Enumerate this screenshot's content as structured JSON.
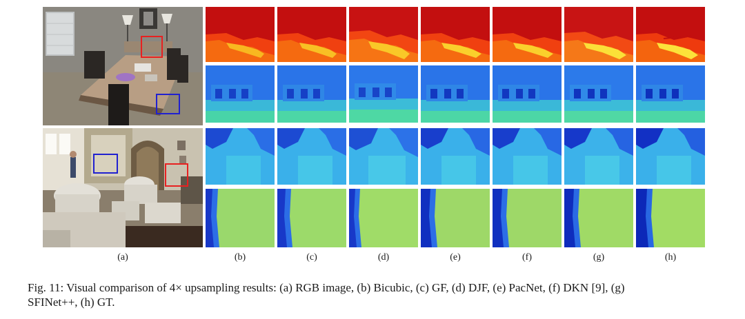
{
  "figure": {
    "sublabels": [
      "(a)",
      "(b)",
      "(c)",
      "(d)",
      "(e)",
      "(f)",
      "(g)",
      "(h)"
    ],
    "methods": [
      "Bicubic",
      "GF",
      "DJF",
      "PacNet",
      "DKN [9]",
      "SFINet++",
      "GT"
    ],
    "caption_line1": "Fig. 11: Visual comparison of 4× upsampling results: (a) RGB image, (b) Bicubic, (c) GF, (d) DJF, (e) PacNet, (f) DKN [9], (g)",
    "caption_line2": "SFINet++, (h) GT.",
    "rows": [
      {
        "scene": "dining-room",
        "colormap": "hot"
      },
      {
        "scene": "dining-room",
        "colormap": "jet-chairs"
      },
      {
        "scene": "living-room",
        "colormap": "jet-blue"
      },
      {
        "scene": "living-room",
        "colormap": "jet-green"
      }
    ],
    "colors": {
      "highlight_box_red": "#e82020",
      "highlight_box_blue": "#2020d0"
    }
  }
}
